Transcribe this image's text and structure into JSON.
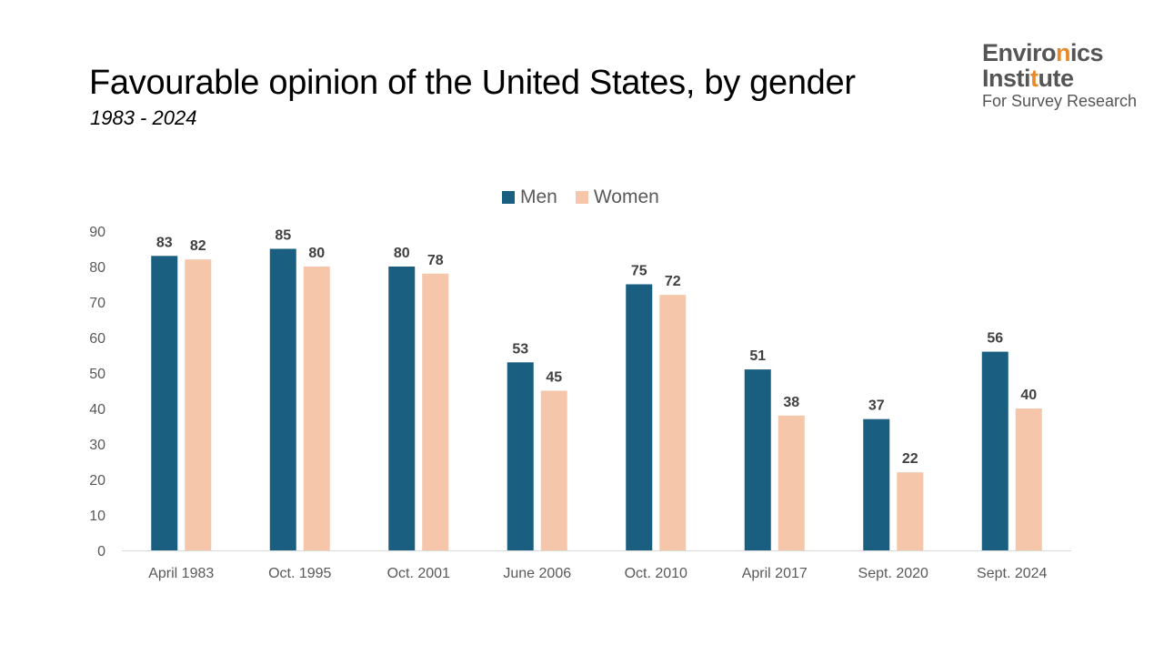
{
  "header": {
    "title": "Favourable opinion of the United States, by gender",
    "subtitle": "1983 - 2024"
  },
  "logo": {
    "line1_a": "Enviro",
    "line1_b": "n",
    "line1_c": "ics",
    "line2_a": "Insti",
    "line2_b": "t",
    "line2_c": "ute",
    "line3": "For Survey Research"
  },
  "colors": {
    "men": "#1a5e80",
    "women": "#f5c6aa",
    "accent": "#e8892a"
  },
  "chart_data": {
    "type": "bar",
    "title": "Favourable opinion of the United States, by gender",
    "subtitle": "1983 - 2024",
    "categories": [
      "April 1983",
      "Oct. 1995",
      "Oct. 2001",
      "June 2006",
      "Oct. 2010",
      "April 2017",
      "Sept. 2020",
      "Sept. 2024"
    ],
    "series": [
      {
        "name": "Men",
        "values": [
          83,
          85,
          80,
          53,
          75,
          51,
          37,
          56
        ]
      },
      {
        "name": "Women",
        "values": [
          82,
          80,
          78,
          45,
          72,
          38,
          22,
          40
        ]
      }
    ],
    "ylim": [
      0,
      90
    ],
    "yticks": [
      0,
      10,
      20,
      30,
      40,
      50,
      60,
      70,
      80,
      90
    ],
    "grid": false,
    "legend": "top-center",
    "data_labels": true
  }
}
